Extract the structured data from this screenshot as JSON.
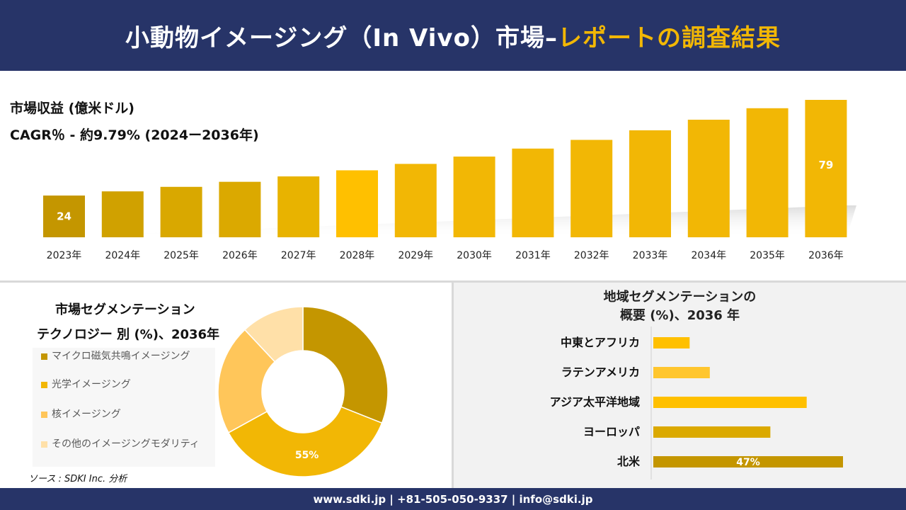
{
  "header": {
    "title_main": "小動物イメージング（In Vivo）市場–",
    "title_accent": "レポートの調査結果"
  },
  "revenue_label": "市場収益 (億米ドル)",
  "cagr_label": "CAGR％ - 約9.79% (2024ー2036年)",
  "colors": {
    "navy": "#273468",
    "gold": "#f2b705",
    "dark_gold": "#c49600"
  },
  "chart_data": [
    {
      "type": "bar",
      "categories": [
        "2023年",
        "2024年",
        "2025年",
        "2026年",
        "2027年",
        "2028年",
        "2029年",
        "2030年",
        "2031年",
        "2032年",
        "2033年",
        "2034年",
        "2035年",
        "2036年"
      ],
      "values": [
        24,
        26.4,
        29.0,
        31.9,
        35.0,
        38.5,
        42.2,
        46.4,
        51.0,
        56.0,
        61.5,
        67.6,
        74.2,
        79
      ],
      "data_labels": {
        "0": "24",
        "13": "79"
      },
      "colors": [
        "#c49600",
        "#d0a100",
        "#d9a800",
        "#dba900",
        "#e8b300",
        "#ffc000",
        "#f2b705",
        "#f2b705",
        "#f2b705",
        "#f2b705",
        "#f2b705",
        "#f2b705",
        "#f2b705",
        "#f2b705"
      ]
    },
    {
      "type": "pie",
      "title": "市場セグメンテーション",
      "subtitle": "テクノロジー 別 (%)、2036年",
      "labels": [
        "マイクロ磁気共鳴イメージング",
        "光学イメージング",
        "核イメージング",
        "その他のイメージングモダリティ"
      ],
      "values": [
        30,
        55,
        15,
        8
      ],
      "slice_values": [
        31,
        36,
        21,
        12
      ],
      "data_labels": {
        "1": "55%"
      },
      "colors": [
        "#c49600",
        "#f2b705",
        "#ffc65a",
        "#ffe0a8"
      ]
    },
    {
      "type": "bar",
      "orientation": "horizontal",
      "title": "地域セグメンテーションの",
      "subtitle": "概要 (%)、2036 年",
      "categories": [
        "中東とアフリカ",
        "ラテンアメリカ",
        "アジア太平洋地域",
        "ヨーロッパ",
        "北米"
      ],
      "values": [
        9,
        14,
        38,
        29,
        47
      ],
      "data_labels": {
        "4": "47%"
      },
      "colors": [
        "#ffc000",
        "#ffc62e",
        "#ffc000",
        "#dba900",
        "#c49600"
      ]
    }
  ],
  "source": "ソース : SDKI Inc. 分析",
  "footer": "www.sdki.jp | +81-505-050-9337 | info@sdki.jp"
}
